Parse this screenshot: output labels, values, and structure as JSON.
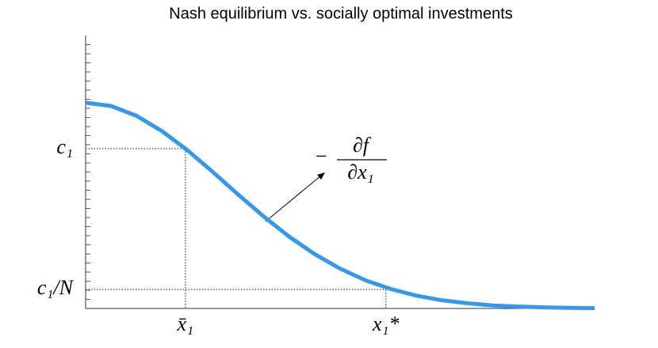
{
  "chart_data": {
    "type": "line",
    "title": "Nash equilibrium vs. socially optimal investments",
    "x": [
      0,
      5,
      10,
      15,
      20,
      25,
      30,
      35,
      40,
      45,
      50,
      55,
      60,
      65,
      70,
      75,
      80,
      85,
      90,
      95,
      100
    ],
    "series": [
      {
        "color": "#3399ee",
        "values": [
          75.4,
          74.2,
          70.6,
          65.0,
          58.0,
          50.0,
          41.7,
          33.7,
          26.3,
          19.9,
          14.6,
          10.3,
          7.1,
          4.7,
          3.0,
          1.9,
          1.1,
          0.7,
          0.4,
          0.2,
          0.1
        ]
      }
    ],
    "xlim": [
      0,
      100
    ],
    "ylim": [
      0,
      100
    ],
    "xticks": [
      {
        "value": 19.6,
        "label": "x̄₁"
      },
      {
        "value": 59.0,
        "label": "x₁*"
      }
    ],
    "yticks": [
      {
        "value": 7.0,
        "label": "c₁/N"
      },
      {
        "value": 58.6,
        "label": "c₁"
      }
    ],
    "annotation": {
      "sign": "−",
      "numerator": "∂f",
      "denominator": "∂x₁"
    }
  }
}
